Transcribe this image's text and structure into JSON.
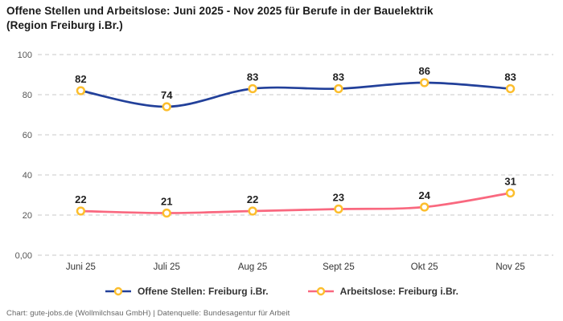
{
  "header": {
    "title_line1": "Offene Stellen und Arbeitslose: Juni 2025 - Nov 2025 für Berufe in der Bauelektrik",
    "title_line2": "(Region Freiburg i.Br.)"
  },
  "footer": {
    "text": "Chart: gute-jobs.de (Wollmilchsau GmbH) | Datenquelle: Bundesagentur für Arbeit"
  },
  "chart_data": {
    "type": "line",
    "title": "Offene Stellen und Arbeitslose: Juni 2025 - Nov 2025 für Berufe in der Bauelektrik (Region Freiburg i.Br.)",
    "categories": [
      "Juni 25",
      "Juli 25",
      "Aug 25",
      "Sept 25",
      "Okt 25",
      "Nov 25"
    ],
    "series": [
      {
        "name": "Offene Stellen: Freiburg i.Br.",
        "values": [
          82,
          74,
          83,
          83,
          86,
          83
        ],
        "color": "#22409a"
      },
      {
        "name": "Arbeitslose: Freiburg i.Br.",
        "values": [
          22,
          21,
          22,
          23,
          24,
          31
        ],
        "color": "#f9687f"
      }
    ],
    "marker_color": "#fcbe2d",
    "marker_fill": "#ffffff",
    "grid_color": "#c8c8c8",
    "y_ticks": [
      {
        "value": 100,
        "label": "100"
      },
      {
        "value": 80,
        "label": "80"
      },
      {
        "value": 60,
        "label": "60"
      },
      {
        "value": 40,
        "label": "40"
      },
      {
        "value": 20,
        "label": "20"
      },
      {
        "value": 0,
        "label": "0,00"
      }
    ],
    "ylim": [
      0,
      100
    ],
    "grid": "horizontal-dashed",
    "legend_position": "bottom",
    "value_labels_shown": true
  }
}
